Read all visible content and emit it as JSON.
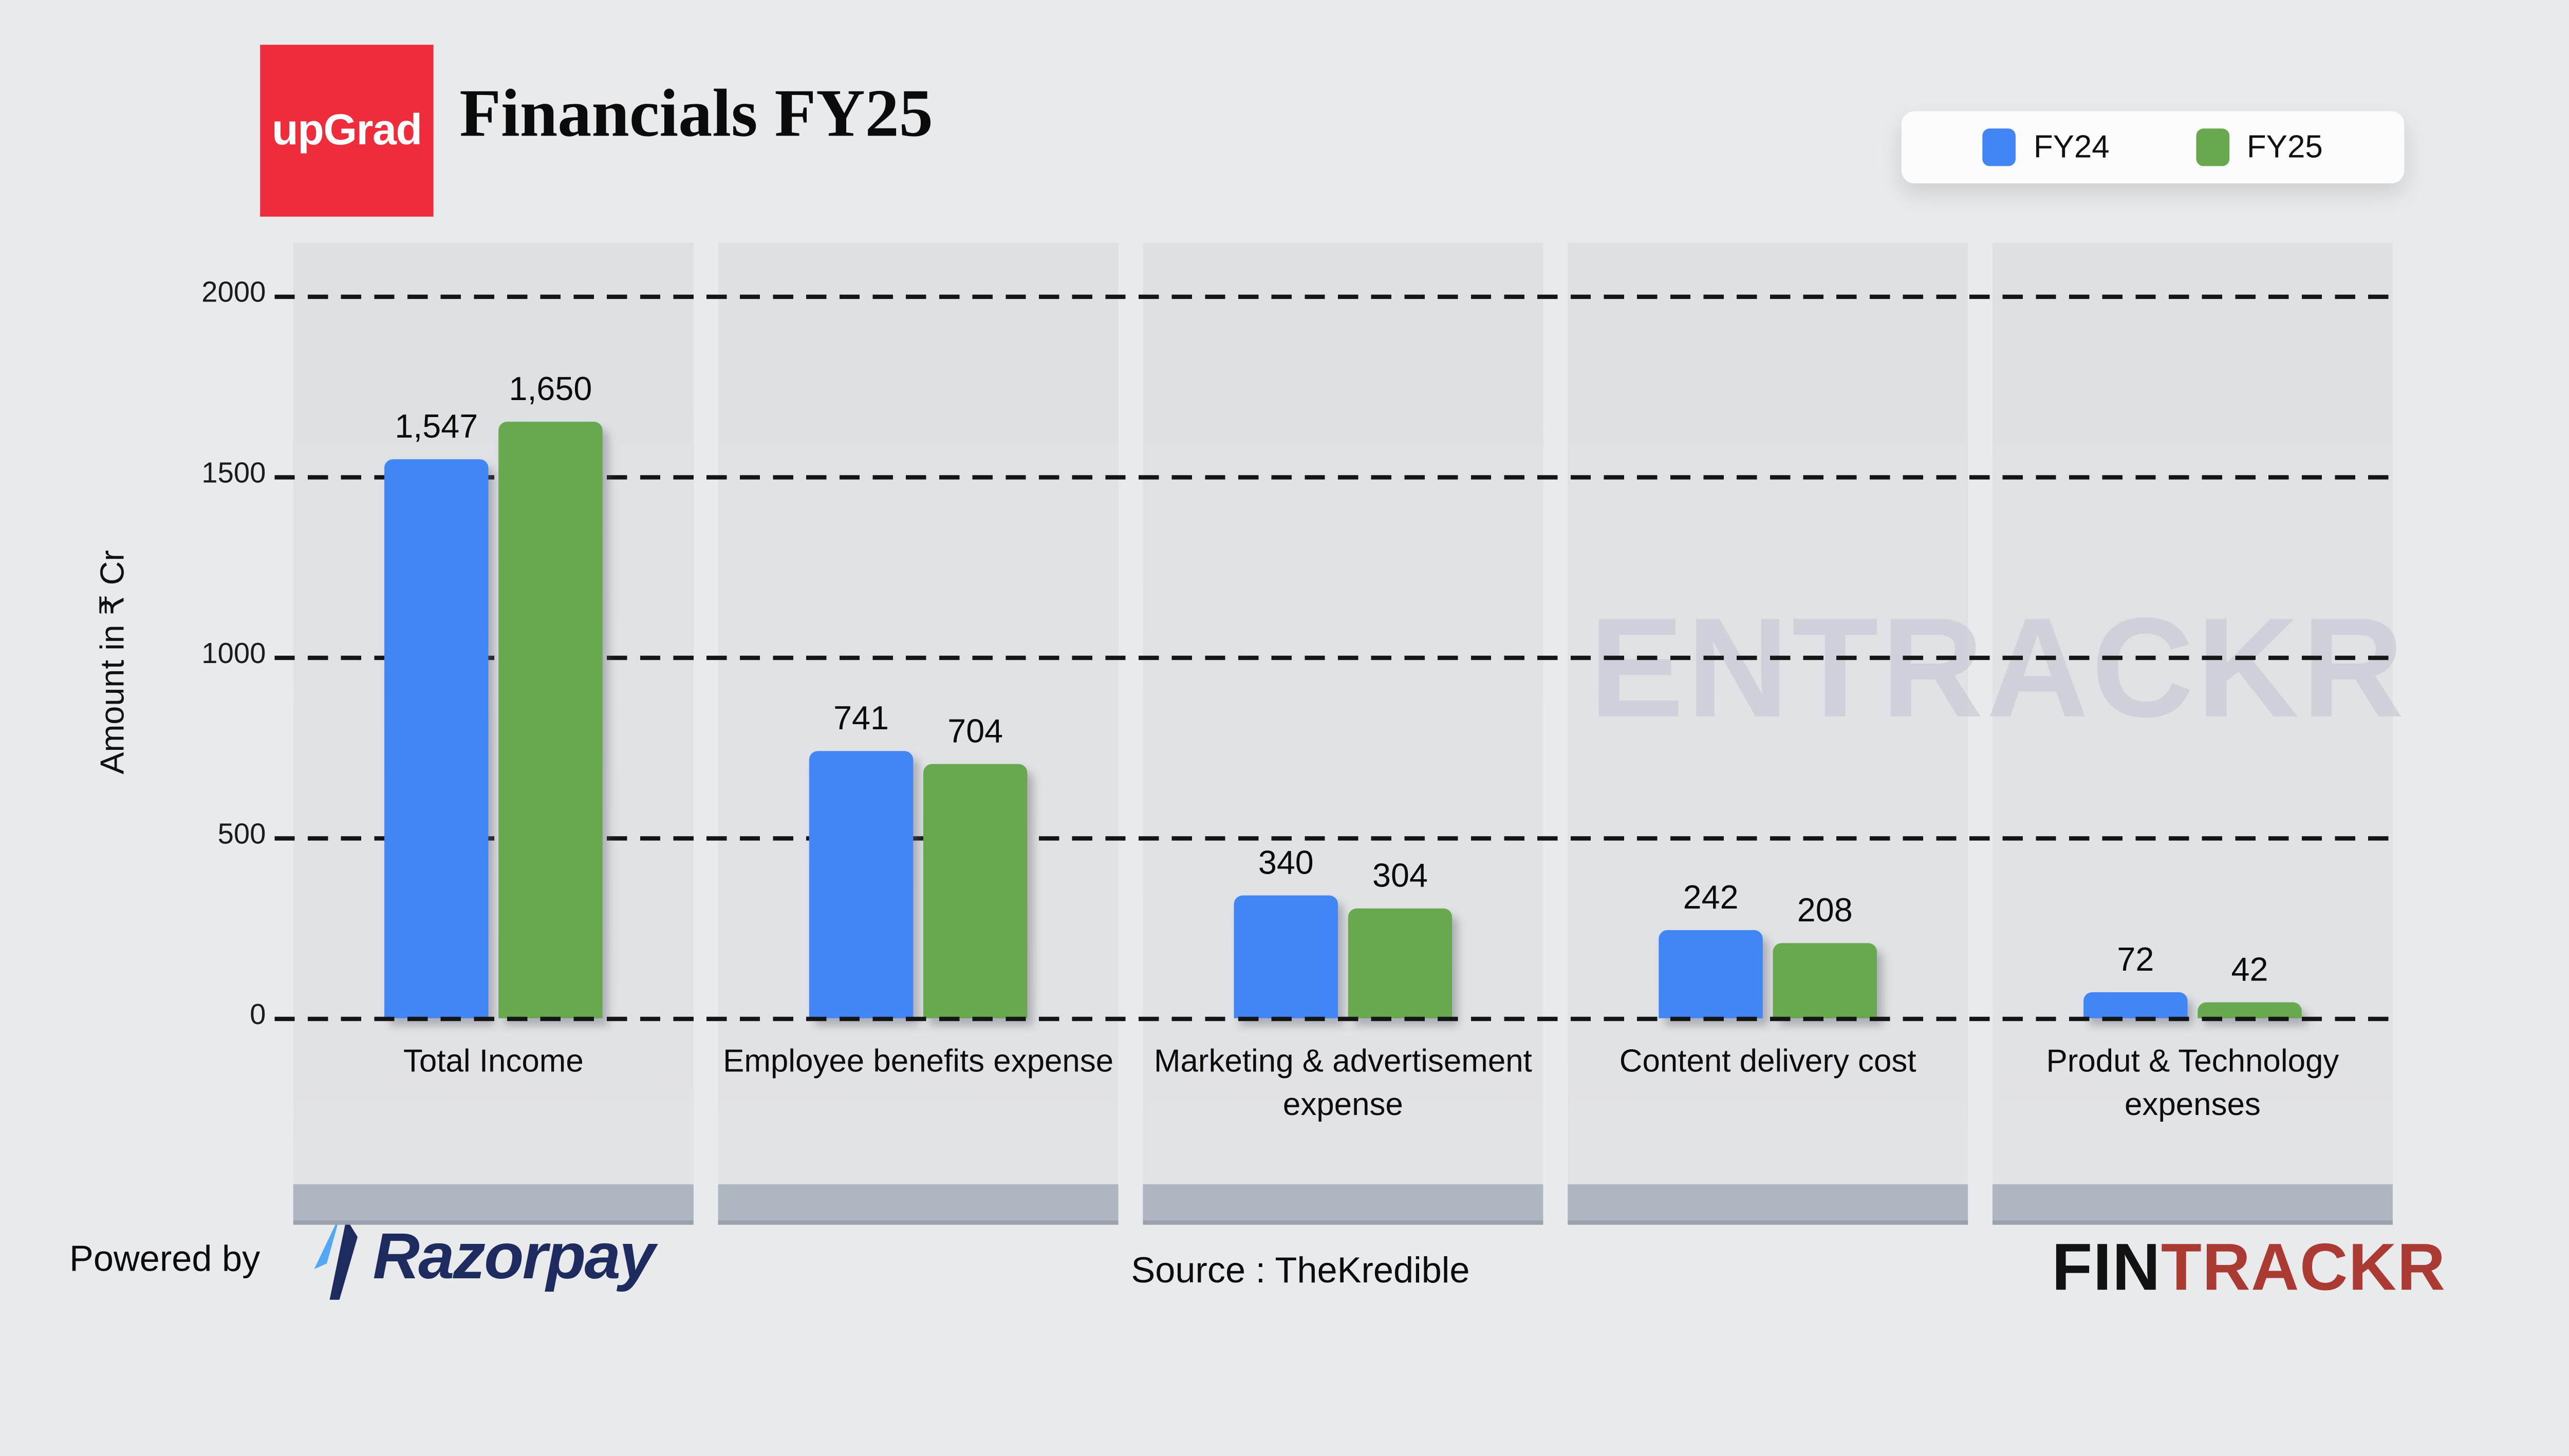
{
  "header": {
    "logo": {
      "text": "upGrad",
      "bg_color": "#ee2c3c"
    },
    "title": "Financials FY25"
  },
  "legend": {
    "position": "top-right",
    "items": [
      {
        "label": "FY24",
        "color": "#4285f4"
      },
      {
        "label": "FY25",
        "color": "#68a94f"
      }
    ]
  },
  "chart_data": {
    "type": "bar",
    "title": "Financials FY25",
    "ylabel": "Amount in ₹ Cr",
    "ylim": [
      0,
      2000
    ],
    "yticks": [
      0,
      500,
      1000,
      1500,
      2000
    ],
    "grid": "horizontal-dashed",
    "legend_position": "top-right",
    "categories": [
      "Total Income",
      "Employee benefits expense",
      "Marketing & advertisement expense",
      "Content delivery cost",
      "Produt & Technology expenses"
    ],
    "series": [
      {
        "name": "FY24",
        "color": "#4285f4",
        "values": [
          1547,
          741,
          340,
          242,
          72
        ],
        "labels": [
          "1,547",
          "741",
          "340",
          "242",
          "72"
        ]
      },
      {
        "name": "FY25",
        "color": "#68a94f",
        "values": [
          1650,
          704,
          304,
          208,
          42
        ],
        "labels": [
          "1,650",
          "704",
          "304",
          "208",
          "42"
        ]
      }
    ]
  },
  "watermark": "ENTRACKR",
  "footer": {
    "powered_by": "Powered by",
    "razorpay_text": "Razorpay",
    "source": "Source : TheKredible",
    "fin": "FIN",
    "trackr": "TRACKR"
  },
  "colors": {
    "background": "#e9eaec",
    "panel": "#dfe1e4",
    "panel_base_strip": "#aeb6c2",
    "upgrad_red": "#ee2c3c",
    "razorpay_navy": "#1d2b5e",
    "razorpay_lightblue": "#53a8f4",
    "fintrackr_red": "#ab3a32"
  }
}
